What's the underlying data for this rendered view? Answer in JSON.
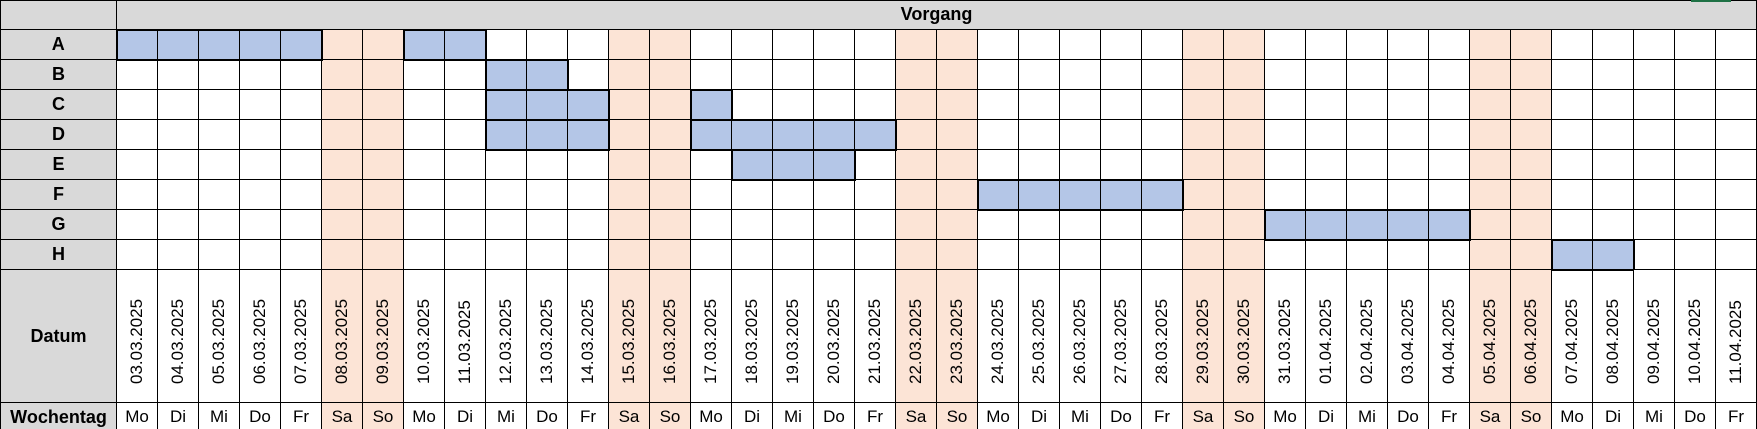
{
  "title": "Vorgang",
  "row_labels": {
    "date": "Datum",
    "weekday": "Wochentag"
  },
  "colors": {
    "header_bg": "#d9d9d9",
    "weekend_bg": "#fce4d6",
    "bar_fill": "#b4c6e7",
    "grid": "#000000"
  },
  "days": [
    {
      "date": "03.03.2025",
      "weekday": "Mo"
    },
    {
      "date": "04.03.2025",
      "weekday": "Di"
    },
    {
      "date": "05.03.2025",
      "weekday": "Mi"
    },
    {
      "date": "06.03.2025",
      "weekday": "Do"
    },
    {
      "date": "07.03.2025",
      "weekday": "Fr"
    },
    {
      "date": "08.03.2025",
      "weekday": "Sa",
      "weekend": true
    },
    {
      "date": "09.03.2025",
      "weekday": "So",
      "weekend": true
    },
    {
      "date": "10.03.2025",
      "weekday": "Mo"
    },
    {
      "date": "11.03.2025",
      "weekday": "Di"
    },
    {
      "date": "12.03.2025",
      "weekday": "Mi"
    },
    {
      "date": "13.03.2025",
      "weekday": "Do"
    },
    {
      "date": "14.03.2025",
      "weekday": "Fr"
    },
    {
      "date": "15.03.2025",
      "weekday": "Sa",
      "weekend": true
    },
    {
      "date": "16.03.2025",
      "weekday": "So",
      "weekend": true
    },
    {
      "date": "17.03.2025",
      "weekday": "Mo"
    },
    {
      "date": "18.03.2025",
      "weekday": "Di"
    },
    {
      "date": "19.03.2025",
      "weekday": "Mi"
    },
    {
      "date": "20.03.2025",
      "weekday": "Do"
    },
    {
      "date": "21.03.2025",
      "weekday": "Fr"
    },
    {
      "date": "22.03.2025",
      "weekday": "Sa",
      "weekend": true
    },
    {
      "date": "23.03.2025",
      "weekday": "So",
      "weekend": true
    },
    {
      "date": "24.03.2025",
      "weekday": "Mo"
    },
    {
      "date": "25.03.2025",
      "weekday": "Di"
    },
    {
      "date": "26.03.2025",
      "weekday": "Mi"
    },
    {
      "date": "27.03.2025",
      "weekday": "Do"
    },
    {
      "date": "28.03.2025",
      "weekday": "Fr"
    },
    {
      "date": "29.03.2025",
      "weekday": "Sa",
      "weekend": true
    },
    {
      "date": "30.03.2025",
      "weekday": "So",
      "weekend": true
    },
    {
      "date": "31.03.2025",
      "weekday": "Mo"
    },
    {
      "date": "01.04.2025",
      "weekday": "Di"
    },
    {
      "date": "02.04.2025",
      "weekday": "Mi"
    },
    {
      "date": "03.04.2025",
      "weekday": "Do"
    },
    {
      "date": "04.04.2025",
      "weekday": "Fr"
    },
    {
      "date": "05.04.2025",
      "weekday": "Sa",
      "weekend": true
    },
    {
      "date": "06.04.2025",
      "weekday": "So",
      "weekend": true
    },
    {
      "date": "07.04.2025",
      "weekday": "Mo"
    },
    {
      "date": "08.04.2025",
      "weekday": "Di"
    },
    {
      "date": "09.04.2025",
      "weekday": "Mi"
    },
    {
      "date": "10.04.2025",
      "weekday": "Do"
    },
    {
      "date": "11.04.2025",
      "weekday": "Fr"
    }
  ],
  "tasks": [
    {
      "name": "A",
      "bars": [
        {
          "start": "03.03.2025",
          "end": "07.03.2025"
        },
        {
          "start": "10.03.2025",
          "end": "11.03.2025"
        }
      ]
    },
    {
      "name": "B",
      "bars": [
        {
          "start": "12.03.2025",
          "end": "13.03.2025"
        }
      ]
    },
    {
      "name": "C",
      "bars": [
        {
          "start": "12.03.2025",
          "end": "14.03.2025"
        },
        {
          "start": "17.03.2025",
          "end": "17.03.2025"
        }
      ]
    },
    {
      "name": "D",
      "bars": [
        {
          "start": "12.03.2025",
          "end": "14.03.2025"
        },
        {
          "start": "17.03.2025",
          "end": "21.03.2025"
        }
      ]
    },
    {
      "name": "E",
      "bars": [
        {
          "start": "18.03.2025",
          "end": "20.03.2025"
        }
      ]
    },
    {
      "name": "F",
      "bars": [
        {
          "start": "24.03.2025",
          "end": "28.03.2025"
        }
      ]
    },
    {
      "name": "G",
      "bars": [
        {
          "start": "31.03.2025",
          "end": "04.04.2025"
        }
      ]
    },
    {
      "name": "H",
      "bars": [
        {
          "start": "07.04.2025",
          "end": "08.04.2025"
        }
      ]
    }
  ]
}
